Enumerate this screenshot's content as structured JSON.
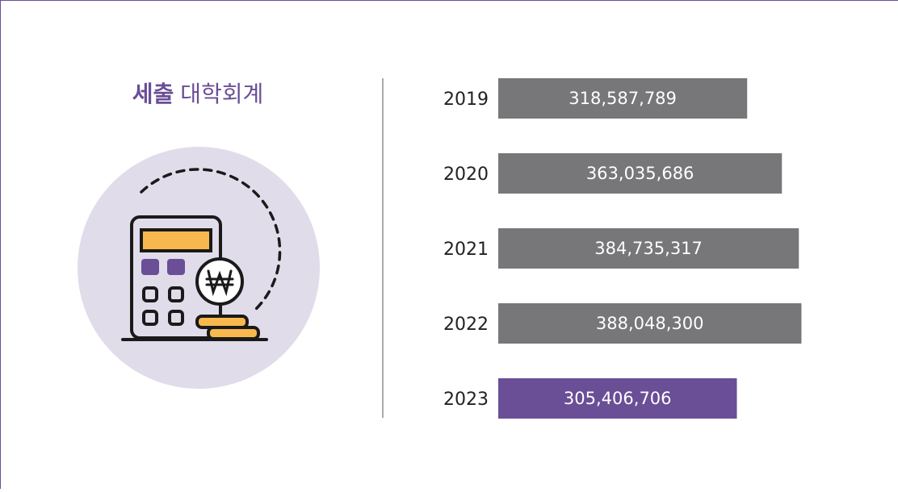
{
  "chart_data": {
    "type": "bar",
    "orientation": "horizontal",
    "title": [
      "세출",
      "대학회계"
    ],
    "categories": [
      "2019",
      "2020",
      "2021",
      "2022",
      "2023"
    ],
    "values": [
      318587789,
      363035686,
      384735317,
      388048300,
      305406706
    ],
    "value_labels": [
      "318,587,789",
      "363,035,686",
      "384,735,317",
      "388,048,300",
      "305,406,706"
    ],
    "colors": [
      "#77777a",
      "#77777a",
      "#77777a",
      "#77777a",
      "#6a4e96"
    ],
    "xlim": [
      0,
      400000000
    ]
  }
}
